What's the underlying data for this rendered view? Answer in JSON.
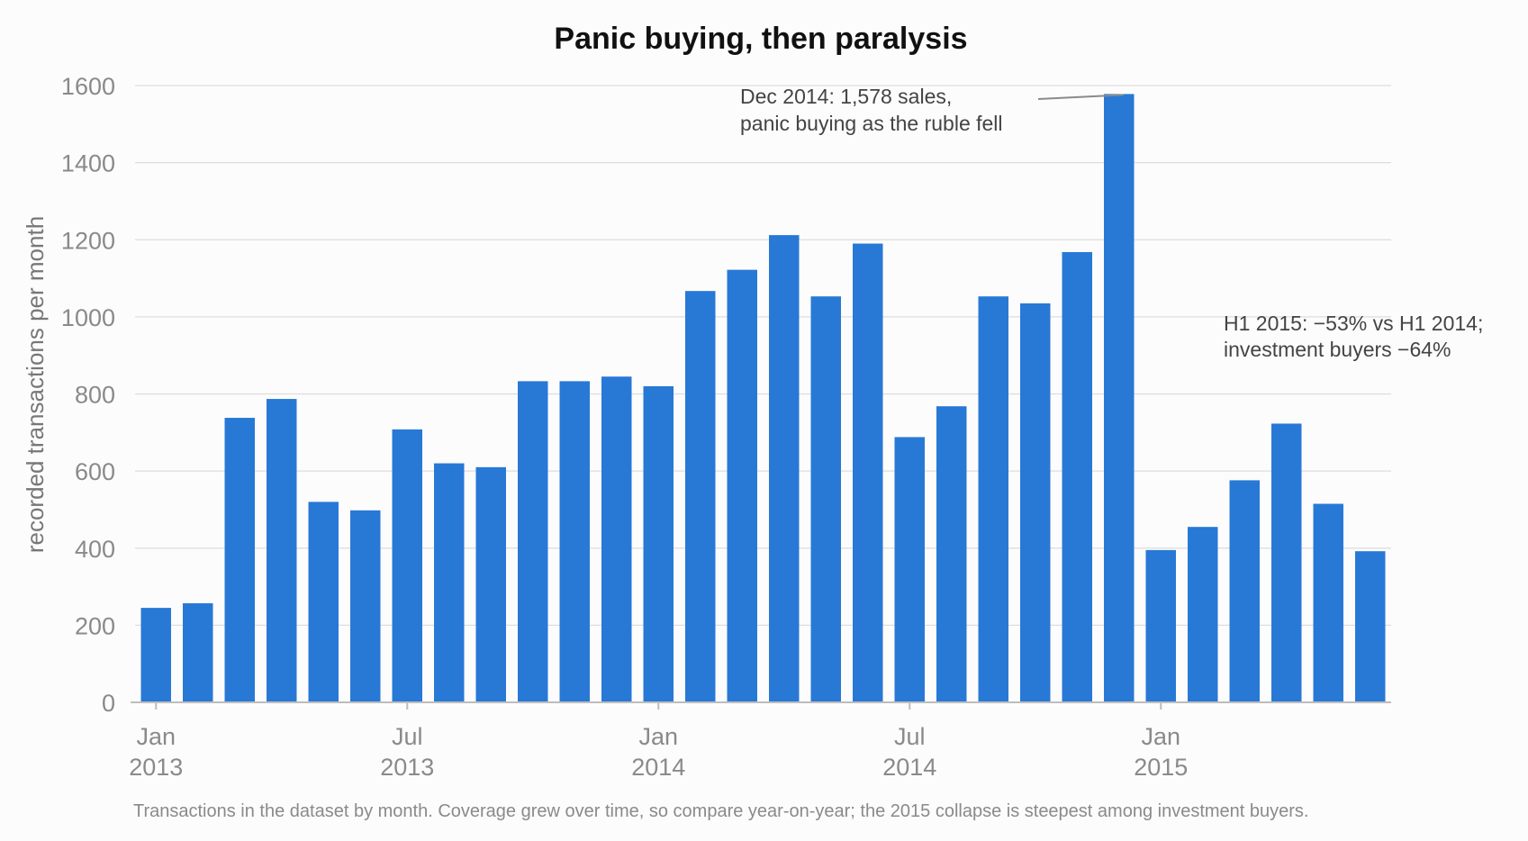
{
  "chart_data": {
    "type": "bar",
    "title": "Panic buying, then paralysis",
    "ylabel": "recorded transactions per month",
    "xlabel": "",
    "ylim": [
      0,
      1600
    ],
    "yticks": [
      0,
      200,
      400,
      600,
      800,
      1000,
      1200,
      1400,
      1600
    ],
    "grid": true,
    "categories": [
      "2013-01",
      "2013-02",
      "2013-03",
      "2013-04",
      "2013-05",
      "2013-06",
      "2013-07",
      "2013-08",
      "2013-09",
      "2013-10",
      "2013-11",
      "2013-12",
      "2014-01",
      "2014-02",
      "2014-03",
      "2014-04",
      "2014-05",
      "2014-06",
      "2014-07",
      "2014-08",
      "2014-09",
      "2014-10",
      "2014-11",
      "2014-12",
      "2015-01",
      "2015-02",
      "2015-03",
      "2015-04",
      "2015-05",
      "2015-06"
    ],
    "values": [
      245,
      257,
      738,
      787,
      520,
      498,
      708,
      620,
      610,
      833,
      833,
      845,
      820,
      1067,
      1122,
      1212,
      1053,
      1190,
      688,
      768,
      1053,
      1035,
      1168,
      1578,
      395,
      455,
      576,
      723,
      515,
      392
    ],
    "color": "#2878d6",
    "xticks": [
      {
        "index": 0,
        "month": "Jan",
        "year": "2013"
      },
      {
        "index": 6,
        "month": "Jul",
        "year": "2013"
      },
      {
        "index": 12,
        "month": "Jan",
        "year": "2014"
      },
      {
        "index": 18,
        "month": "Jul",
        "year": "2014"
      },
      {
        "index": 24,
        "month": "Jan",
        "year": "2015"
      }
    ],
    "annotations": [
      {
        "target_index": 23,
        "lines": [
          "Dec 2014: 1,578 sales,",
          "panic buying as the ruble fell"
        ]
      },
      {
        "lines": [
          "H1 2015: −53% vs H1 2014;",
          "investment buyers −64%"
        ]
      }
    ],
    "caption": "Transactions in the dataset by month. Coverage grew over time, so compare year-on-year; the 2015 collapse is steepest among investment buyers."
  }
}
